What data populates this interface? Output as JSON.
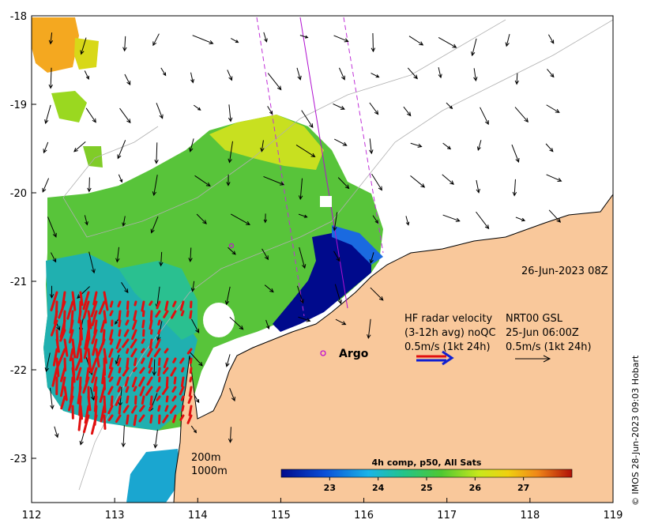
{
  "map": {
    "timestamp": "26-Jun-2023 08Z",
    "argo_label": "Argo",
    "hf_radar": {
      "title": "HF radar velocity",
      "subtitle": "(3-12h avg) noQC",
      "scale": "0.5m/s (1kt 24h)"
    },
    "nrt_gsl": {
      "title": "NRT00 GSL",
      "time": "25-Jun 06:00Z",
      "scale": "0.5m/s (1kt 24h)"
    },
    "depth_labels": [
      "200m",
      "1000m"
    ],
    "colorbar": {
      "title": "4h comp, p50, All Sats",
      "min": 22,
      "max": 28,
      "ticks": [
        "23",
        "24",
        "25",
        "26",
        "27"
      ]
    },
    "credit": "© IMOS 28-Jun-2023 09:03 Hobart",
    "axes": {
      "x_ticks": [
        "112",
        "113",
        "114",
        "115",
        "116",
        "117",
        "118",
        "119"
      ],
      "y_ticks": [
        "-18",
        "-19",
        "-20",
        "-21",
        "-22",
        "-23"
      ],
      "x_range": [
        112,
        119
      ],
      "y_range": [
        -23.5,
        -18
      ]
    },
    "colors": {
      "land": "#f9c89b",
      "warm_sst": "#f4b400",
      "mid_sst": "#5cc83c",
      "cool_sst": "#1aa6c9",
      "cold_sst": "#000a8c",
      "radar_vectors": "#e01010",
      "track": "#b010d0"
    }
  }
}
